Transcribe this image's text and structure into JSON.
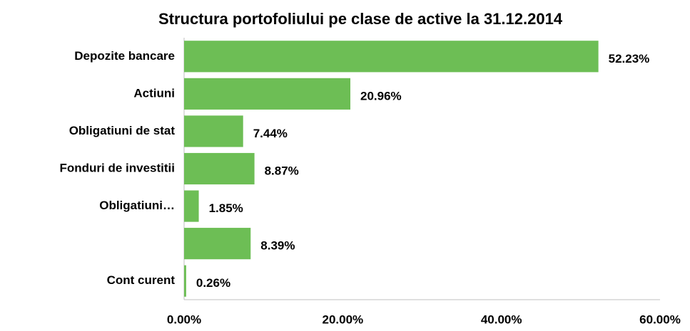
{
  "chart_data": {
    "type": "barh",
    "title": "Structura portofoliului pe clase de active la 31.12.2014",
    "categories": [
      "Depozite bancare",
      "Actiuni",
      "Obligatiuni de stat",
      "Fonduri de investitii",
      "Obligatiuni…",
      null,
      "Cont curent"
    ],
    "values": [
      52.23,
      20.96,
      7.44,
      8.87,
      1.85,
      8.39,
      0.26
    ],
    "value_labels": [
      "52.23%",
      "20.96%",
      "7.44%",
      "8.87%",
      "1.85%",
      "8.39%",
      "0.26%"
    ],
    "color": "#6dbe55",
    "xlim": [
      0,
      60
    ],
    "xticks": [
      {
        "value": 0,
        "label": "0.00%"
      },
      {
        "value": 20,
        "label": "20.00%"
      },
      {
        "value": 40,
        "label": "40.00%"
      },
      {
        "value": 60,
        "label": "60.00%"
      }
    ],
    "grid": false
  }
}
